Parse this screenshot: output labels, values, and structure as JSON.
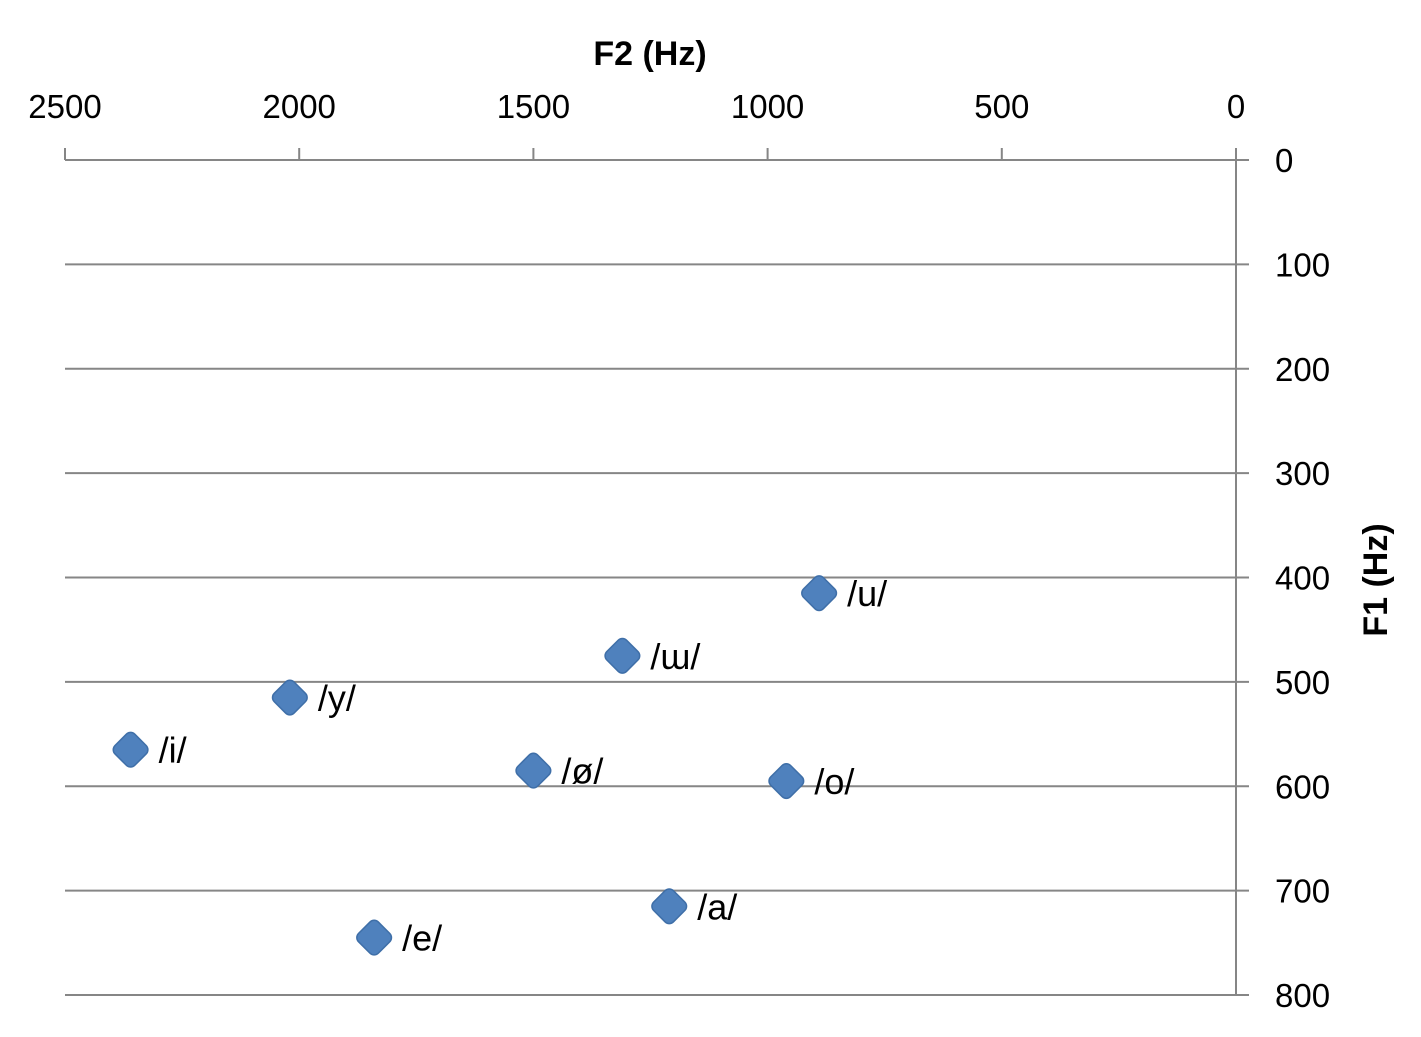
{
  "chart_data": {
    "type": "scatter",
    "title": "",
    "xlabel": "F2 (Hz)",
    "ylabel": "F1 (Hz)",
    "xlim": [
      2500,
      0
    ],
    "ylim": [
      800,
      0
    ],
    "x_axis_reversed": true,
    "y_axis_reversed": true,
    "x_axis_position": "top",
    "y_axis_position": "right",
    "x_ticks": [
      2500,
      2000,
      1500,
      1000,
      500,
      0
    ],
    "y_ticks": [
      0,
      100,
      200,
      300,
      400,
      500,
      600,
      700,
      800
    ],
    "x_tick_labels": [
      "2500",
      "2000",
      "1500",
      "1000",
      "500",
      "0"
    ],
    "y_tick_labels": [
      "0",
      "100",
      "200",
      "300",
      "400",
      "500",
      "600",
      "700",
      "800"
    ],
    "grid": "horizontal",
    "legend": "none",
    "marker": "diamond",
    "series_color": "#4f81bd",
    "grid_color": "#868686",
    "points": [
      {
        "label": "/u/",
        "x": 890,
        "y": 415
      },
      {
        "label": "/ɯ/",
        "x": 1310,
        "y": 475
      },
      {
        "label": "/y/",
        "x": 2020,
        "y": 515
      },
      {
        "label": "/i/",
        "x": 2360,
        "y": 565
      },
      {
        "label": "/ø/",
        "x": 1500,
        "y": 585
      },
      {
        "label": "/o/",
        "x": 960,
        "y": 595
      },
      {
        "label": "/a/",
        "x": 1210,
        "y": 715
      },
      {
        "label": "/e/",
        "x": 1840,
        "y": 745
      }
    ]
  }
}
